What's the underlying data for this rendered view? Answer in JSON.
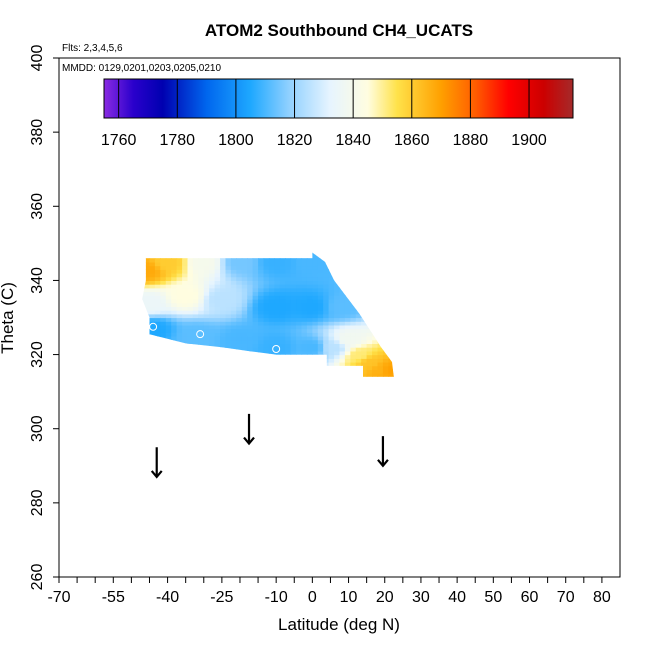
{
  "chart_data": {
    "type": "heatmap",
    "title": "ATOM2 Southbound CH4_UCATS",
    "annotations": [
      "Flts: 2,3,4,5,6",
      "MMDD: 0129,0201,0203,0205,0210"
    ],
    "xlabel": "Latitude (deg N)",
    "ylabel": "Theta (C)",
    "xlim": [
      -70,
      85
    ],
    "ylim": [
      260,
      400
    ],
    "x_ticks": [
      "-70",
      "-55",
      "-40",
      "-25",
      "-10",
      "0",
      "10",
      "20",
      "30",
      "40",
      "50",
      "60",
      "70",
      "80"
    ],
    "x_tick_values": [
      -70,
      -55,
      -40,
      -25,
      -10,
      0,
      10,
      20,
      30,
      40,
      50,
      60,
      70,
      80
    ],
    "y_ticks": [
      "260",
      "280",
      "300",
      "320",
      "340",
      "360",
      "380",
      "400"
    ],
    "y_tick_values": [
      260,
      280,
      300,
      320,
      340,
      360,
      380,
      400
    ],
    "colorbar": {
      "range": [
        1755,
        1915
      ],
      "labels": [
        "1760",
        "1780",
        "1800",
        "1820",
        "1840",
        "1860",
        "1880",
        "1900"
      ],
      "label_values": [
        1760,
        1780,
        1800,
        1820,
        1840,
        1860,
        1880,
        1900
      ],
      "stops": [
        {
          "v": 1755,
          "c": "#8a2be2"
        },
        {
          "v": 1765,
          "c": "#2a00cc"
        },
        {
          "v": 1775,
          "c": "#0000b0"
        },
        {
          "v": 1790,
          "c": "#0066ee"
        },
        {
          "v": 1805,
          "c": "#1ea8ff"
        },
        {
          "v": 1818,
          "c": "#8fd0ff"
        },
        {
          "v": 1832,
          "c": "#e6f4ff"
        },
        {
          "v": 1845,
          "c": "#fffde0"
        },
        {
          "v": 1855,
          "c": "#ffe24a"
        },
        {
          "v": 1870,
          "c": "#ffa000"
        },
        {
          "v": 1882,
          "c": "#ff5a00"
        },
        {
          "v": 1893,
          "c": "#ff0000"
        },
        {
          "v": 1905,
          "c": "#cc0000"
        },
        {
          "v": 1915,
          "c": "#a52a2a"
        }
      ]
    },
    "field": {
      "polygon": [
        [
          -46,
          346
        ],
        [
          0,
          346
        ],
        [
          0,
          347.5
        ],
        [
          3.5,
          345
        ],
        [
          6,
          340
        ],
        [
          13,
          331
        ],
        [
          17,
          325
        ],
        [
          19,
          322
        ],
        [
          22,
          318
        ],
        [
          22.5,
          314
        ],
        [
          14,
          314
        ],
        [
          14,
          317
        ],
        [
          4,
          317
        ],
        [
          4,
          320
        ],
        [
          -10,
          320
        ],
        [
          -18,
          321
        ],
        [
          -25,
          322
        ],
        [
          -35,
          323
        ],
        [
          -45,
          325.5
        ],
        [
          -45,
          330
        ],
        [
          -47,
          335
        ],
        [
          -46,
          340
        ]
      ],
      "points": [
        {
          "lat": -46,
          "theta": 343,
          "v": 1868
        },
        {
          "lat": -40,
          "theta": 345,
          "v": 1860
        },
        {
          "lat": -30,
          "theta": 345,
          "v": 1840
        },
        {
          "lat": -20,
          "theta": 345,
          "v": 1815
        },
        {
          "lat": -10,
          "theta": 345,
          "v": 1808
        },
        {
          "lat": 0,
          "theta": 345,
          "v": 1810
        },
        {
          "lat": -45,
          "theta": 334,
          "v": 1835
        },
        {
          "lat": -35,
          "theta": 336,
          "v": 1845
        },
        {
          "lat": -25,
          "theta": 335,
          "v": 1825
        },
        {
          "lat": -10,
          "theta": 333,
          "v": 1805
        },
        {
          "lat": 0,
          "theta": 333,
          "v": 1805
        },
        {
          "lat": 8,
          "theta": 333,
          "v": 1812
        },
        {
          "lat": -44,
          "theta": 327,
          "v": 1805
        },
        {
          "lat": -32,
          "theta": 325,
          "v": 1812
        },
        {
          "lat": -20,
          "theta": 324,
          "v": 1810
        },
        {
          "lat": -10,
          "theta": 322,
          "v": 1808
        },
        {
          "lat": 0,
          "theta": 322,
          "v": 1810
        },
        {
          "lat": 6,
          "theta": 322,
          "v": 1825
        },
        {
          "lat": 10,
          "theta": 324,
          "v": 1838
        },
        {
          "lat": 13,
          "theta": 320,
          "v": 1852
        },
        {
          "lat": 16,
          "theta": 318,
          "v": 1862
        },
        {
          "lat": 19,
          "theta": 316,
          "v": 1866
        },
        {
          "lat": 21,
          "theta": 316,
          "v": 1870
        }
      ]
    },
    "circles": [
      {
        "lat": -44,
        "theta": 327.5
      },
      {
        "lat": -31,
        "theta": 325.5
      },
      {
        "lat": -10,
        "theta": 321.5
      }
    ],
    "arrows": [
      {
        "lat": -43,
        "theta_top": 295,
        "theta_bottom": 287
      },
      {
        "lat": -17.5,
        "theta_top": 304,
        "theta_bottom": 296
      },
      {
        "lat": 19.5,
        "theta_top": 298,
        "theta_bottom": 290
      }
    ]
  }
}
